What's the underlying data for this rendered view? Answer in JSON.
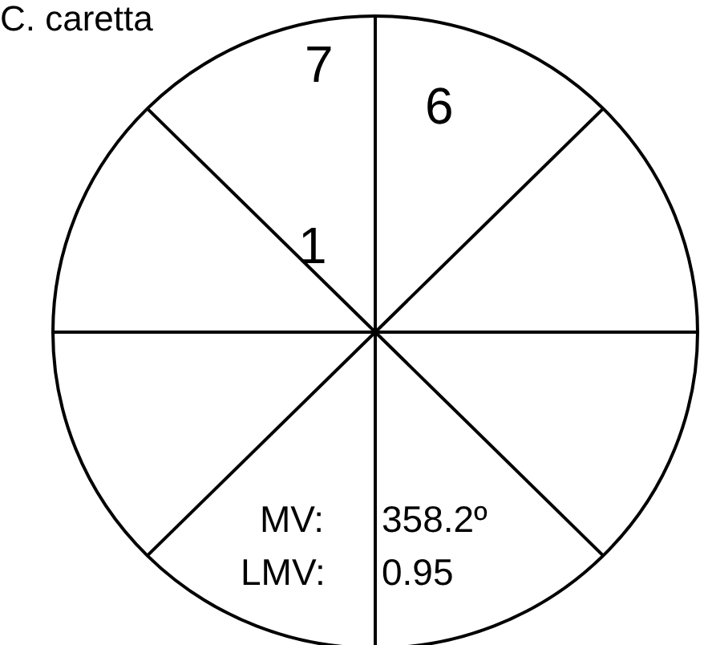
{
  "chart_data": {
    "type": "other",
    "title": "C. caretta",
    "categories": [
      null,
      null,
      null
    ],
    "values": [
      7,
      6,
      1
    ],
    "data_labels": true,
    "annotations": [
      "MV:",
      "358.2º",
      "LMV:",
      "0.95"
    ]
  }
}
